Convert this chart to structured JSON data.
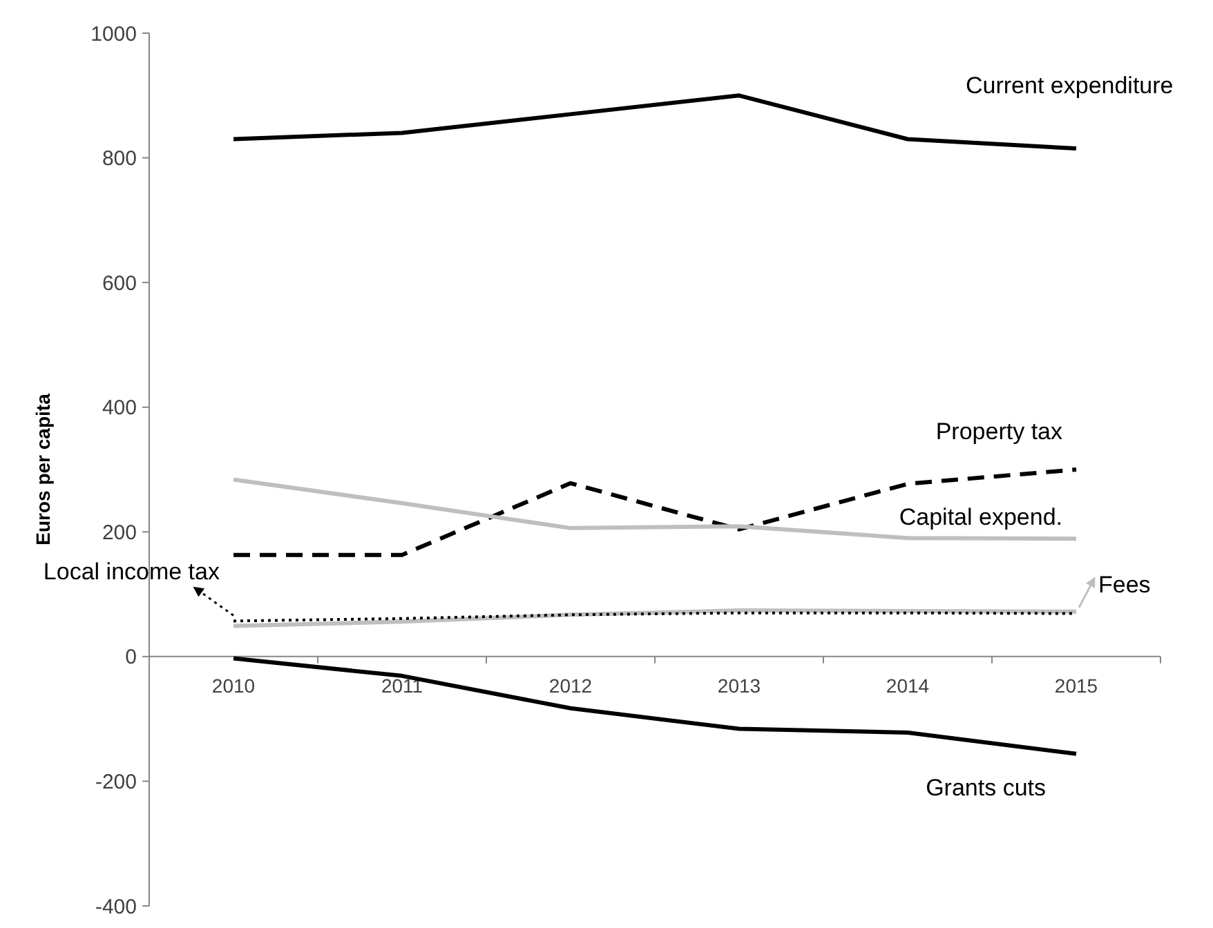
{
  "chart_data": {
    "type": "line",
    "ylabel": "Euros per capita",
    "categories": [
      "2010",
      "2011",
      "2012",
      "2013",
      "2014",
      "2015"
    ],
    "series": [
      {
        "name": "Current expenditure",
        "color": "#000000",
        "line_style": "solid",
        "values": [
          830,
          840,
          870,
          900,
          830,
          815
        ]
      },
      {
        "name": "Property tax",
        "color": "#000000",
        "line_style": "dashed",
        "values": [
          163,
          163,
          278,
          204,
          277,
          300
        ]
      },
      {
        "name": "Capital expend.",
        "color": "#bfbfbf",
        "line_style": "solid",
        "values": [
          284,
          246,
          206,
          209,
          190,
          189
        ]
      },
      {
        "name": "Fees",
        "color": "#bfbfbf",
        "line_style": "solid",
        "values": [
          49,
          56,
          67,
          74,
          73,
          72
        ]
      },
      {
        "name": "Local income tax",
        "color": "#000000",
        "line_style": "dotted",
        "values": [
          57,
          61,
          67,
          70,
          70,
          69
        ]
      },
      {
        "name": "Grants cuts",
        "color": "#000000",
        "line_style": "solid",
        "values": [
          -3,
          -31,
          -83,
          -116,
          -122,
          -156
        ]
      }
    ],
    "ylim": [
      -400,
      1000
    ],
    "yticks": [
      -400,
      -200,
      0,
      200,
      400,
      600,
      800,
      1000
    ],
    "grid": false,
    "marker": "none"
  }
}
